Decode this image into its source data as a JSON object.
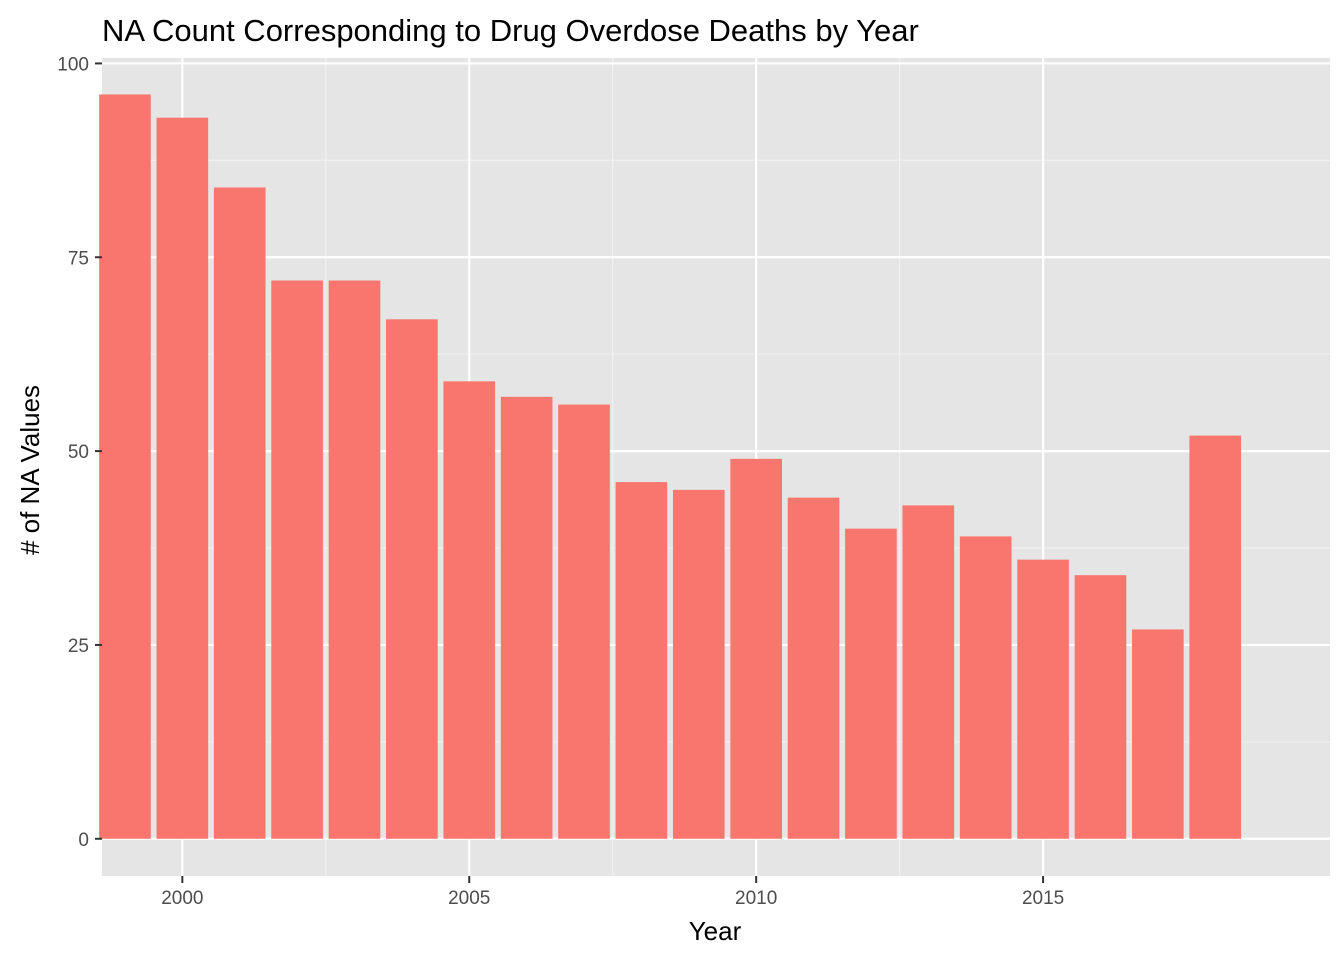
{
  "chart_data": {
    "type": "bar",
    "title": "NA Count Corresponding to Drug Overdose Deaths by Year",
    "xlabel": "Year",
    "ylabel": "# of NA Values",
    "x": [
      1999,
      2000,
      2001,
      2002,
      2003,
      2004,
      2005,
      2006,
      2007,
      2008,
      2009,
      2010,
      2011,
      2012,
      2013,
      2014,
      2015,
      2016,
      2017,
      2018
    ],
    "values": [
      96,
      93,
      84,
      72,
      72,
      67,
      59,
      57,
      56,
      46,
      45,
      49,
      44,
      40,
      43,
      39,
      36,
      34,
      27,
      52
    ],
    "xlim": [
      1998.6,
      2020.0
    ],
    "ylim": [
      -4.8,
      100.7
    ],
    "x_ticks": [
      2000,
      2005,
      2010,
      2015
    ],
    "x_tick_labels": [
      "2000",
      "2005",
      "2010",
      "2015"
    ],
    "y_ticks": [
      0,
      25,
      50,
      75,
      100
    ],
    "y_tick_labels": [
      "0",
      "25",
      "50",
      "75",
      "100"
    ],
    "grid": true,
    "legend": "none",
    "colors": {
      "bar": "#f8766d",
      "panel_background": "#e5e5e5",
      "grid_major": "#ffffff",
      "grid_minor": "#f2f2f2",
      "tick_label": "#4d4d4d",
      "title": "#000000"
    }
  }
}
